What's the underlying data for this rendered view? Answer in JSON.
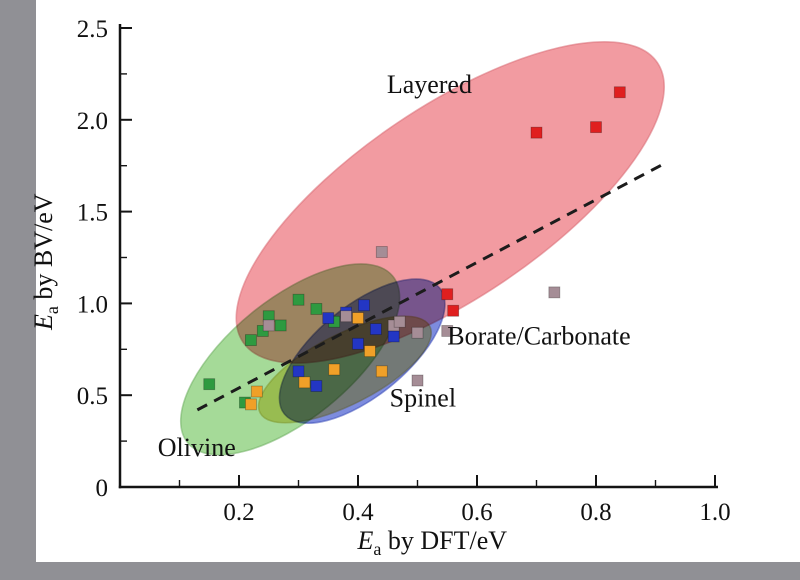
{
  "figure": {
    "background": "#ffffff",
    "left_bar_color": "#909095",
    "bottom_bar_color": "#909095"
  },
  "chart_data": {
    "type": "scatter",
    "title": "",
    "xlabel": {
      "symbol": "E",
      "subscript": "a",
      "rest": " by DFT/eV"
    },
    "ylabel": {
      "symbol": "E",
      "subscript": "a",
      "rest": " by BV/eV"
    },
    "xlim": [
      0,
      1.0
    ],
    "ylim": [
      0,
      2.5
    ],
    "x_ticks": [
      {
        "v": 0.2,
        "label": "0.2"
      },
      {
        "v": 0.4,
        "label": "0.4"
      },
      {
        "v": 0.6,
        "label": "0.6"
      },
      {
        "v": 0.8,
        "label": "0.8"
      },
      {
        "v": 1.0,
        "label": "1.0"
      }
    ],
    "x_minor_ticks": [
      0.1,
      0.3,
      0.5,
      0.7,
      0.9
    ],
    "y_ticks": [
      {
        "v": 0.0,
        "label": "0"
      },
      {
        "v": 0.5,
        "label": "0.5"
      },
      {
        "v": 1.0,
        "label": "1.0"
      },
      {
        "v": 1.5,
        "label": "1.5"
      },
      {
        "v": 2.0,
        "label": "2.0"
      },
      {
        "v": 2.5,
        "label": "2.5"
      }
    ],
    "y_minor_ticks": [
      0.25,
      0.75,
      1.25,
      1.75,
      2.25
    ],
    "grid": false,
    "legend": "none",
    "trend_line": {
      "style": "dashed",
      "color": "#1c1c1c",
      "x": [
        0.13,
        0.92
      ],
      "y": [
        0.42,
        1.77
      ]
    },
    "groups": [
      {
        "label": "Layered",
        "label_xy": [
          0.52,
          2.145
        ],
        "label_anchor": "middle",
        "ellipse": {
          "cx": 0.555,
          "cy": 1.55,
          "rx": 0.42,
          "ry": 0.52,
          "rotate_deg": -34,
          "fill": "#ef8289",
          "stroke": "#d96b74"
        }
      },
      {
        "label": "Olivine",
        "label_xy": [
          0.129,
          0.17
        ],
        "label_anchor": "middle",
        "ellipse": {
          "cx": 0.286,
          "cy": 0.695,
          "rx": 0.222,
          "ry": 0.328,
          "rotate_deg": -39,
          "fill": "#8ed17e",
          "stroke": "#6fae63"
        }
      },
      {
        "label": "Spinel",
        "label_xy": [
          0.509,
          0.438
        ],
        "label_anchor": "middle",
        "ellipse": {
          "cx": 0.407,
          "cy": 0.74,
          "rx": 0.168,
          "ry": 0.246,
          "rotate_deg": -39,
          "fill": "#5c6fd6",
          "stroke": "#3a4cb8"
        }
      },
      {
        "label": "Borate/Carbonate",
        "label_xy": [
          0.55,
          0.775
        ],
        "label_anchor": "start",
        "ellipse": {
          "cx": 0.378,
          "cy": 0.64,
          "rx": 0.16,
          "ry": 0.19,
          "rotate_deg": -27,
          "fill": "#e6d36a",
          "stroke": "#c4b24e"
        }
      }
    ],
    "series": [
      {
        "name": "red-squares",
        "color": "#e01f1f",
        "points": [
          [
            0.84,
            2.15
          ],
          [
            0.8,
            1.96
          ],
          [
            0.7,
            1.93
          ],
          [
            0.55,
            1.05
          ],
          [
            0.56,
            0.96
          ]
        ]
      },
      {
        "name": "green-squares",
        "color": "#2e9a40",
        "points": [
          [
            0.15,
            0.56
          ],
          [
            0.21,
            0.46
          ],
          [
            0.22,
            0.8
          ],
          [
            0.24,
            0.85
          ],
          [
            0.25,
            0.93
          ],
          [
            0.3,
            1.02
          ],
          [
            0.33,
            0.97
          ],
          [
            0.36,
            0.9
          ],
          [
            0.27,
            0.88
          ]
        ]
      },
      {
        "name": "blue-squares",
        "color": "#2336c4",
        "points": [
          [
            0.3,
            0.63
          ],
          [
            0.33,
            0.55
          ],
          [
            0.35,
            0.92
          ],
          [
            0.38,
            0.95
          ],
          [
            0.41,
            0.99
          ],
          [
            0.43,
            0.86
          ],
          [
            0.46,
            0.82
          ],
          [
            0.4,
            0.78
          ]
        ]
      },
      {
        "name": "orange-squares",
        "color": "#f0a028",
        "points": [
          [
            0.22,
            0.45
          ],
          [
            0.23,
            0.52
          ],
          [
            0.31,
            0.57
          ],
          [
            0.36,
            0.64
          ],
          [
            0.4,
            0.92
          ],
          [
            0.44,
            0.63
          ],
          [
            0.42,
            0.74
          ]
        ]
      },
      {
        "name": "gray-squares",
        "color": "#a58d96",
        "points": [
          [
            0.73,
            1.06
          ],
          [
            0.44,
            1.28
          ],
          [
            0.25,
            0.88
          ],
          [
            0.38,
            0.93
          ],
          [
            0.46,
            0.88
          ],
          [
            0.5,
            0.84
          ],
          [
            0.55,
            0.85
          ],
          [
            0.5,
            0.58
          ],
          [
            0.47,
            0.9
          ]
        ]
      }
    ]
  }
}
